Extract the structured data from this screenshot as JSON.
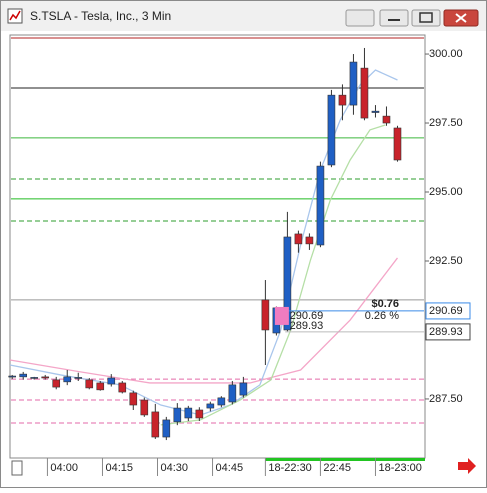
{
  "window_title": "S.TSLA - Tesla, Inc., 3 Min",
  "chart_data": {
    "type": "candlestick",
    "x": [
      0,
      1,
      2,
      3,
      4,
      5,
      6,
      7,
      8,
      9,
      10,
      11,
      12,
      13,
      14,
      15,
      16,
      17,
      18,
      19,
      20,
      21,
      23,
      24,
      25,
      26,
      27,
      28,
      29,
      30,
      31,
      32,
      33,
      34,
      35
    ],
    "open": [
      288.3,
      288.3,
      288.26,
      288.3,
      288.19,
      288.12,
      288.26,
      288.19,
      288.08,
      288.04,
      288.08,
      287.72,
      287.46,
      287.03,
      286.12,
      286.67,
      286.81,
      287.1,
      287.17,
      287.28,
      287.39,
      287.64,
      291.09,
      289.89,
      290.0,
      293.48,
      293.37,
      293.08,
      295.98,
      298.51,
      298.15,
      299.49,
      297.88,
      297.75,
      297.32
    ],
    "high": [
      288.37,
      288.48,
      288.3,
      288.37,
      288.3,
      288.55,
      288.45,
      288.26,
      288.15,
      288.4,
      288.15,
      287.8,
      287.55,
      287.32,
      286.85,
      287.35,
      287.25,
      287.2,
      287.4,
      287.6,
      288.15,
      288.3,
      291.81,
      290.85,
      294.28,
      293.6,
      293.5,
      296.1,
      298.7,
      298.9,
      300.0,
      300.22,
      298.15,
      298.1,
      297.4
    ],
    "low": [
      288.22,
      288.2,
      288.2,
      288.2,
      287.85,
      288.0,
      288.15,
      287.85,
      287.8,
      287.95,
      287.7,
      287.1,
      286.85,
      286.05,
      286.01,
      286.55,
      286.7,
      286.7,
      287.05,
      287.2,
      287.3,
      287.55,
      288.73,
      289.8,
      289.95,
      292.8,
      292.9,
      293.0,
      295.9,
      297.6,
      297.8,
      297.6,
      297.7,
      297.4,
      296.1
    ],
    "close": [
      288.33,
      288.4,
      288.28,
      288.26,
      287.93,
      288.3,
      288.28,
      287.9,
      287.83,
      288.26,
      287.75,
      287.28,
      286.92,
      286.12,
      286.74,
      287.17,
      287.17,
      286.81,
      287.32,
      287.54,
      288.01,
      288.08,
      290.0,
      290.8,
      293.37,
      293.12,
      293.12,
      295.94,
      298.51,
      298.15,
      299.71,
      297.68,
      297.93,
      297.5,
      296.16
    ],
    "up_color": "#1f5fc4",
    "down_color": "#c8232b",
    "series": [
      {
        "color": "#f4a6c8",
        "x": [
          -0.2,
          6.2,
          12.5,
          21.6,
          26.2,
          30.7,
          35
        ],
        "values": [
          288.91,
          288.48,
          288.08,
          288.08,
          288.55,
          290.36,
          292.61
        ]
      },
      {
        "color": "#a9c6ec",
        "x": [
          -0.2,
          4.4,
          9.8,
          13.5,
          17.1,
          19.8,
          22.5,
          24.4,
          26.2,
          28,
          29.8,
          31.6,
          33,
          35
        ],
        "values": [
          288.73,
          288.37,
          288.01,
          287.28,
          286.92,
          287.28,
          288.01,
          290.0,
          293.08,
          295.8,
          297.61,
          298.88,
          299.42,
          299.06
        ]
      },
      {
        "color": "#b5dfa6",
        "x": [
          13.5,
          17.1,
          20.7,
          23.5,
          25.3,
          27.1,
          28.9,
          30.7,
          32.5,
          33.9
        ],
        "values": [
          286.56,
          286.74,
          287.46,
          288.19,
          290.0,
          292.54,
          294.71,
          296.16,
          297.25,
          297.43
        ]
      }
    ],
    "levels": [
      {
        "value": 300.58,
        "color": "#b22222",
        "dash": false
      },
      {
        "value": 298.77,
        "color": "#222222",
        "dash": false
      },
      {
        "value": 296.96,
        "color": "#3cb83c",
        "dash": false
      },
      {
        "value": 295.47,
        "color": "#2e9e2e",
        "dash": true
      },
      {
        "value": 294.75,
        "color": "#22bb22",
        "dash": false
      },
      {
        "value": 293.95,
        "color": "#2e9e2e",
        "dash": true
      },
      {
        "value": 291.09,
        "color": "#999999",
        "dash": false
      },
      {
        "value": 288.22,
        "color": "#e36aa8",
        "dash": true
      },
      {
        "value": 287.46,
        "color": "#e36aa8",
        "dash": true
      },
      {
        "value": 286.63,
        "color": "#e36aa8",
        "dash": true
      }
    ],
    "last_price": 290.69,
    "last_price_label": "290.69",
    "ref_price": 289.93,
    "ref_price_label": "289.93",
    "change": "$0.76",
    "change_pct": "0.26 %",
    "xlim": [
      -0.2,
      37.5
    ],
    "ylim": [
      285.36,
      300.69
    ],
    "yticks": [
      {
        "value": 300,
        "label": "300.00"
      },
      {
        "value": 297.5,
        "label": "297.50"
      },
      {
        "value": 295,
        "label": "295.00"
      },
      {
        "value": 292.5,
        "label": "292.50"
      },
      {
        "value": 287.5,
        "label": "287.50"
      }
    ],
    "xticks": [
      {
        "value": 3.2,
        "label": "04:00"
      },
      {
        "value": 8.2,
        "label": "04:15"
      },
      {
        "value": 13.2,
        "label": "04:30"
      },
      {
        "value": 18.2,
        "label": "04:45"
      },
      {
        "value": 23,
        "label": "18-22:30"
      },
      {
        "value": 28,
        "label": "22:45"
      },
      {
        "value": 33,
        "label": "18-23:00"
      }
    ]
  }
}
